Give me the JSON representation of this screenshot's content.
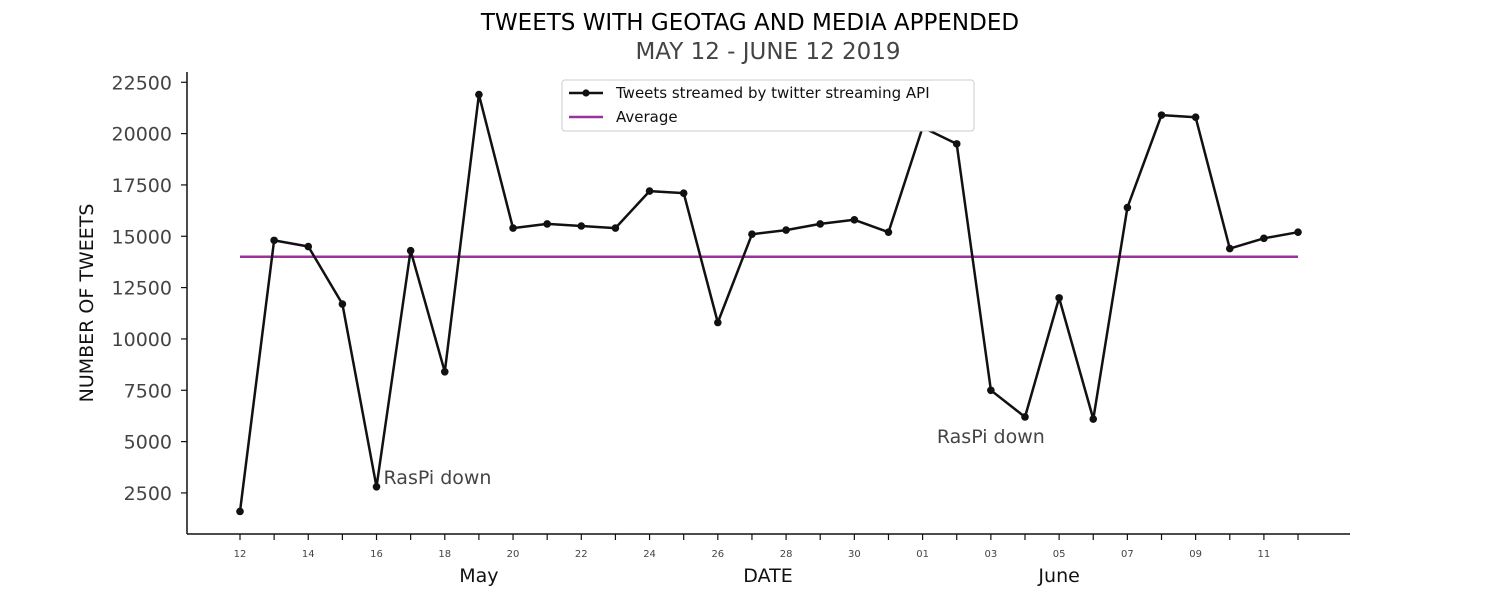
{
  "chart_data": {
    "type": "line",
    "title": "TWEETS WITH GEOTAG AND MEDIA APPENDED",
    "subtitle": "MAY 12 - JUNE 12 2019",
    "xlabel": "DATE",
    "ylabel": "NUMBER OF TWEETS",
    "x": [
      "2019-05-12",
      "2019-05-13",
      "2019-05-14",
      "2019-05-15",
      "2019-05-16",
      "2019-05-17",
      "2019-05-18",
      "2019-05-19",
      "2019-05-20",
      "2019-05-21",
      "2019-05-22",
      "2019-05-23",
      "2019-05-24",
      "2019-05-25",
      "2019-05-26",
      "2019-05-27",
      "2019-05-28",
      "2019-05-29",
      "2019-05-30",
      "2019-05-31",
      "2019-06-01",
      "2019-06-02",
      "2019-06-03",
      "2019-06-04",
      "2019-06-05",
      "2019-06-06",
      "2019-06-07",
      "2019-06-08",
      "2019-06-09",
      "2019-06-10",
      "2019-06-11",
      "2019-06-12"
    ],
    "x_tick_labels": [
      "12",
      "14",
      "16",
      "18",
      "20",
      "22",
      "24",
      "26",
      "28",
      "30",
      "01",
      "03",
      "05",
      "07",
      "09",
      "11"
    ],
    "month_labels": [
      "May",
      "June"
    ],
    "y_ticks": [
      2500,
      5000,
      7500,
      10000,
      12500,
      15000,
      17500,
      20000,
      22500
    ],
    "ylim": [
      500,
      23000
    ],
    "series": [
      {
        "name": "Tweets streamed by twitter streaming API",
        "color": "#111111",
        "marker": "circle",
        "values": [
          1600,
          14800,
          14500,
          11700,
          2800,
          14300,
          8400,
          21900,
          15400,
          15600,
          15500,
          15400,
          17200,
          17100,
          10800,
          15100,
          15300,
          15600,
          15800,
          15200,
          20300,
          19500,
          7500,
          6200,
          12000,
          6100,
          16400,
          20900,
          20800,
          14400,
          14900,
          15200
        ]
      },
      {
        "name": "Average",
        "color": "#993399",
        "constant": 14000
      }
    ],
    "annotations": [
      {
        "text": "RasPi down",
        "date": "2019-05-16"
      },
      {
        "text": "RasPi down",
        "date": "2019-06-03"
      }
    ],
    "legend_position": "top-center",
    "grid": false
  }
}
